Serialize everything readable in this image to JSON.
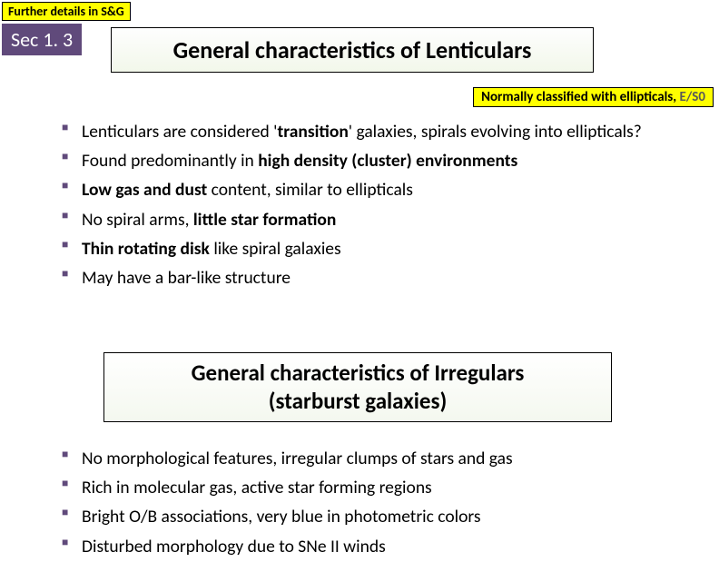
{
  "header": {
    "top_tag": "Further details in S&G",
    "section_badge": "Sec 1. 3",
    "main_title": "General characteristics of Lenticulars",
    "sub_tag_prefix": "Normally classified with ellipticals, ",
    "sub_tag_grey": "E/S0"
  },
  "lenticulars": {
    "items": [
      {
        "html": "Lenticulars are considered '<span class='b'>transition</span>' galaxies, spirals evolving into ellipticals?"
      },
      {
        "html": "Found predominantly in <span class='b'>high density (cluster) environments</span>"
      },
      {
        "html": "<span class='b'>Low gas and dust</span> content, similar to ellipticals"
      },
      {
        "html": "No spiral arms, <span class='b'>little star formation</span>"
      },
      {
        "html": "<span class='b'>Thin rotating disk</span> like spiral galaxies"
      },
      {
        "html": "May have a bar-like structure"
      }
    ]
  },
  "irregulars": {
    "title_line1": "General characteristics of Irregulars",
    "title_line2": "(starburst galaxies)",
    "items": [
      {
        "html": "No morphological features, irregular clumps of stars and gas"
      },
      {
        "html": "Rich in molecular gas, active star forming regions"
      },
      {
        "html": "Bright O/B associations, very blue in photometric colors"
      },
      {
        "html": "Disturbed morphology due to SNe II winds"
      }
    ]
  },
  "colors": {
    "accent": "#604a7b",
    "highlight": "#ffff00",
    "background": "#ffffff"
  }
}
